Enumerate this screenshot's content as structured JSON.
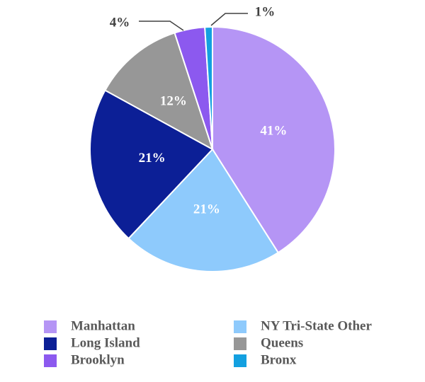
{
  "chart_data": {
    "type": "pie",
    "title": "",
    "start_angle_deg": 0,
    "direction": "clockwise",
    "slices": [
      {
        "name": "Manhattan",
        "value": 41,
        "label": "41%",
        "color": "#b595f5",
        "label_color": "#ffffff"
      },
      {
        "name": "NY Tri-State Other",
        "value": 21,
        "label": "21%",
        "color": "#8ecafc",
        "label_color": "#ffffff"
      },
      {
        "name": "Long Island",
        "value": 21,
        "label": "21%",
        "color": "#0c1f96",
        "label_color": "#ffffff"
      },
      {
        "name": "Queens",
        "value": 12,
        "label": "12%",
        "color": "#979797",
        "label_color": "#ffffff"
      },
      {
        "name": "Brooklyn",
        "value": 4,
        "label": "4%",
        "color": "#8c59ef",
        "label_color": "#404040"
      },
      {
        "name": "Bronx",
        "value": 1,
        "label": "1%",
        "color": "#13a0e0",
        "label_color": "#404040"
      }
    ],
    "legend": {
      "placement": "bottom",
      "columns": [
        [
          "Manhattan",
          "Long Island",
          "Brooklyn"
        ],
        [
          "NY Tri-State Other",
          "Queens",
          "Bronx"
        ]
      ]
    }
  }
}
